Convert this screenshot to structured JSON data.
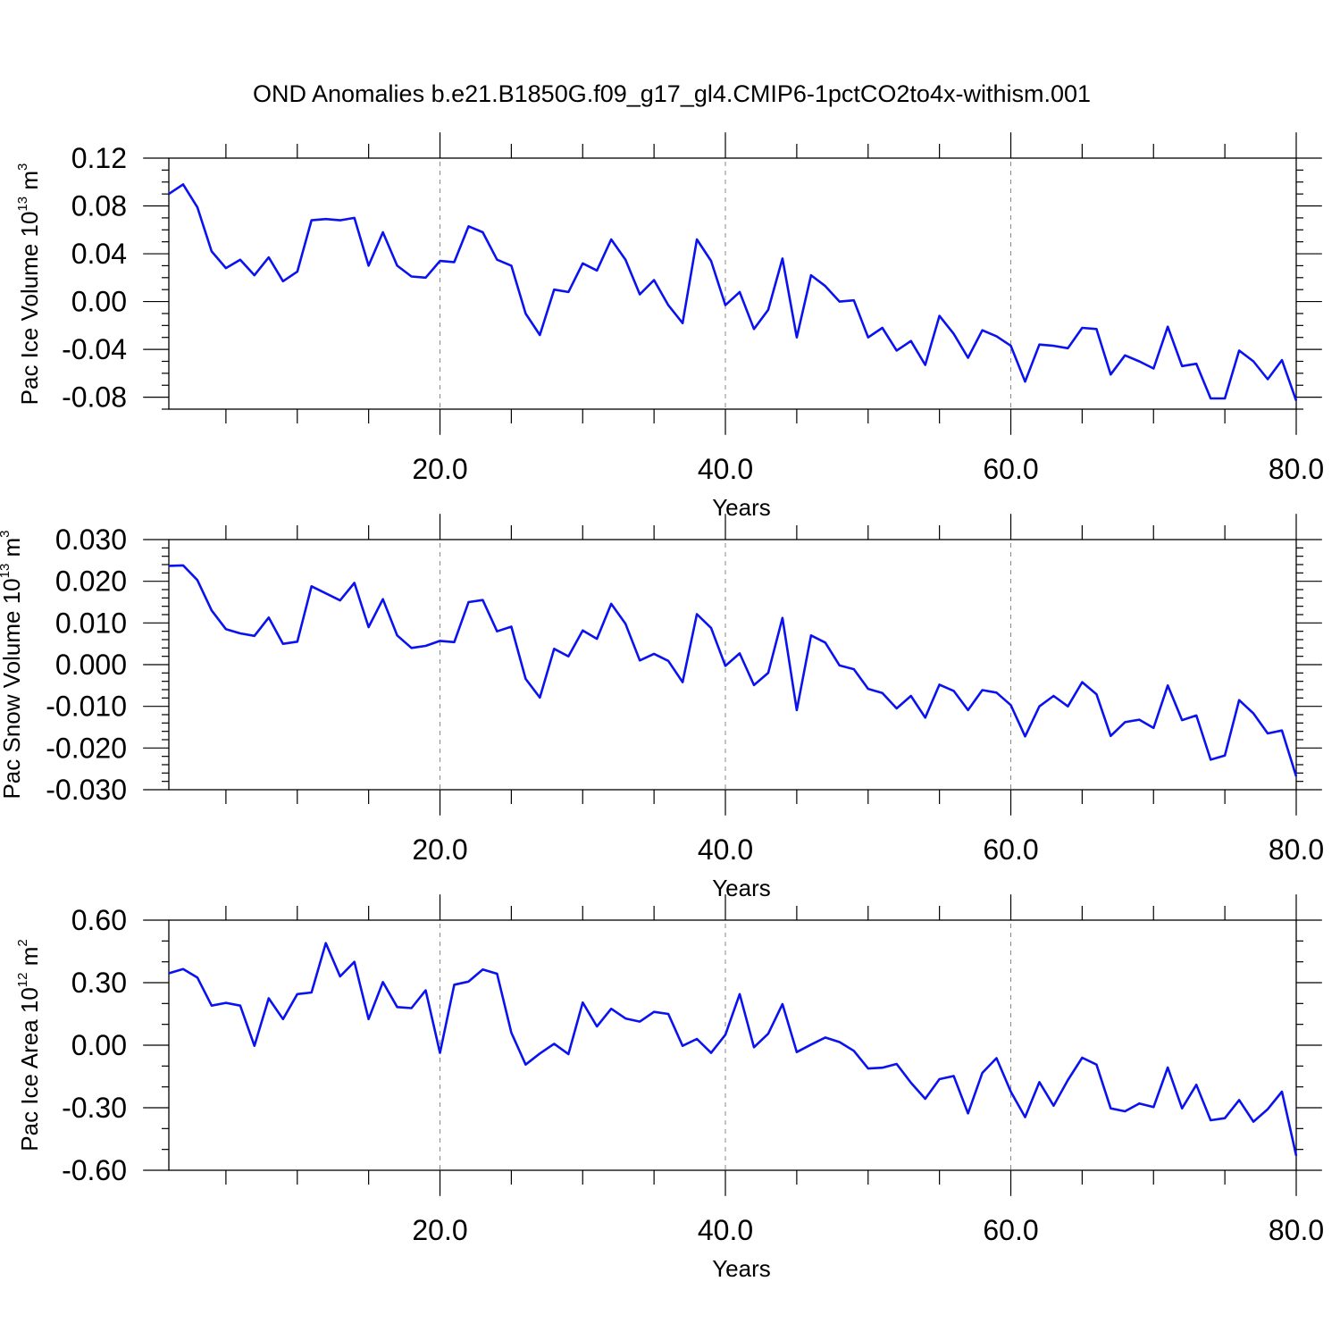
{
  "figure_title": "OND Anomalies b.e21.B1850G.f09_g17_gl4.CMIP6-1pctCO2to4x-withism.001",
  "colors": {
    "series": "#0a12f0",
    "grid": "#888888",
    "axes": "#000000"
  },
  "chart_data": [
    {
      "type": "line",
      "ylabel": {
        "main": "Pac Ice Volume 10",
        "exponent": "13",
        "unit": " m",
        "unit_exponent": "3"
      },
      "xlabel": "Years",
      "xlim": [
        1,
        80
      ],
      "ylim": [
        -0.09,
        0.12
      ],
      "yticks": [
        -0.08,
        -0.04,
        0.0,
        0.04,
        0.08,
        0.12
      ],
      "ytick_labels": [
        "-0.08",
        "-0.04",
        "0.00",
        "0.04",
        "0.08",
        "0.12"
      ],
      "yminor_step": 0.01,
      "xticks": [
        20,
        40,
        60,
        80
      ],
      "xtick_labels": [
        "20.0",
        "40.0",
        "60.0",
        "80.0"
      ],
      "xminor_step": 5,
      "grid_x": [
        20,
        40,
        60
      ],
      "x_start": 1,
      "values": [
        0.09,
        0.098,
        0.079,
        0.042,
        0.028,
        0.035,
        0.022,
        0.037,
        0.017,
        0.025,
        0.068,
        0.069,
        0.068,
        0.07,
        0.03,
        0.058,
        0.03,
        0.021,
        0.02,
        0.034,
        0.033,
        0.063,
        0.058,
        0.035,
        0.03,
        -0.01,
        -0.028,
        0.01,
        0.008,
        0.032,
        0.026,
        0.052,
        0.035,
        0.006,
        0.018,
        -0.003,
        -0.018,
        0.052,
        0.034,
        -0.003,
        0.008,
        -0.023,
        -0.007,
        0.036,
        -0.03,
        0.022,
        0.013,
        0.0,
        0.001,
        -0.03,
        -0.022,
        -0.041,
        -0.033,
        -0.053,
        -0.012,
        -0.027,
        -0.047,
        -0.024,
        -0.029,
        -0.037,
        -0.067,
        -0.036,
        -0.037,
        -0.039,
        -0.022,
        -0.023,
        -0.061,
        -0.045,
        -0.05,
        -0.056,
        -0.021,
        -0.054,
        -0.052,
        -0.081,
        -0.081,
        -0.041,
        -0.05,
        -0.065,
        -0.049,
        -0.083
      ]
    },
    {
      "type": "line",
      "ylabel": {
        "main": "Pac Snow Volume 10",
        "exponent": "13",
        "unit": " m",
        "unit_exponent": "3"
      },
      "xlabel": "Years",
      "xlim": [
        1,
        80
      ],
      "ylim": [
        -0.03,
        0.03
      ],
      "yticks": [
        -0.03,
        -0.02,
        -0.01,
        0.0,
        0.01,
        0.02,
        0.03
      ],
      "ytick_labels": [
        "-0.030",
        "-0.020",
        "-0.010",
        "0.000",
        "0.010",
        "0.020",
        "0.030"
      ],
      "yminor_step": 0.002,
      "xticks": [
        20,
        40,
        60,
        80
      ],
      "xtick_labels": [
        "20.0",
        "40.0",
        "60.0",
        "80.0"
      ],
      "xminor_step": 5,
      "grid_x": [
        20,
        40,
        60
      ],
      "x_start": 1,
      "values": [
        0.0237,
        0.0238,
        0.0203,
        0.013,
        0.0085,
        0.0075,
        0.0069,
        0.0113,
        0.005,
        0.0055,
        0.0188,
        0.0171,
        0.0154,
        0.0196,
        0.009,
        0.0157,
        0.007,
        0.004,
        0.0045,
        0.0057,
        0.0054,
        0.015,
        0.0155,
        0.008,
        0.0091,
        -0.0034,
        -0.0079,
        0.0038,
        0.002,
        0.0082,
        0.0062,
        0.0146,
        0.0098,
        0.001,
        0.0026,
        0.0009,
        -0.0042,
        0.0121,
        0.0088,
        -0.0003,
        0.0027,
        -0.0049,
        -0.002,
        0.0112,
        -0.0109,
        0.007,
        0.0053,
        -0.0002,
        -0.0011,
        -0.0058,
        -0.0068,
        -0.0105,
        -0.0075,
        -0.0127,
        -0.0048,
        -0.0063,
        -0.0109,
        -0.0061,
        -0.0067,
        -0.0097,
        -0.0172,
        -0.01,
        -0.0075,
        -0.01,
        -0.0042,
        -0.0071,
        -0.0171,
        -0.0138,
        -0.0132,
        -0.0152,
        -0.005,
        -0.0133,
        -0.0122,
        -0.0228,
        -0.0218,
        -0.0085,
        -0.0117,
        -0.0165,
        -0.0158,
        -0.0268
      ]
    },
    {
      "type": "line",
      "ylabel": {
        "main": "Pac Ice Area 10",
        "exponent": "12",
        "unit": " m",
        "unit_exponent": "2"
      },
      "xlabel": "Years",
      "xlim": [
        1,
        80
      ],
      "ylim": [
        -0.6,
        0.6
      ],
      "yticks": [
        -0.6,
        -0.3,
        0.0,
        0.3,
        0.6
      ],
      "ytick_labels": [
        "-0.60",
        "-0.30",
        "0.00",
        "0.30",
        "0.60"
      ],
      "yminor_step": 0.1,
      "xticks": [
        20,
        40,
        60,
        80
      ],
      "xtick_labels": [
        "20.0",
        "40.0",
        "60.0",
        "80.0"
      ],
      "xminor_step": 5,
      "grid_x": [
        20,
        40,
        60
      ],
      "x_start": 1,
      "values": [
        0.345,
        0.365,
        0.325,
        0.19,
        0.203,
        0.19,
        -0.003,
        0.225,
        0.125,
        0.245,
        0.253,
        0.49,
        0.33,
        0.4,
        0.125,
        0.303,
        0.183,
        0.178,
        0.263,
        -0.037,
        0.29,
        0.305,
        0.363,
        0.343,
        0.06,
        -0.093,
        -0.04,
        0.007,
        -0.043,
        0.205,
        0.09,
        0.175,
        0.128,
        0.113,
        0.16,
        0.15,
        -0.003,
        0.03,
        -0.037,
        0.05,
        0.245,
        -0.01,
        0.055,
        0.197,
        -0.033,
        0.003,
        0.037,
        0.015,
        -0.027,
        -0.112,
        -0.108,
        -0.09,
        -0.18,
        -0.257,
        -0.163,
        -0.148,
        -0.327,
        -0.133,
        -0.062,
        -0.223,
        -0.345,
        -0.177,
        -0.29,
        -0.167,
        -0.06,
        -0.093,
        -0.303,
        -0.317,
        -0.28,
        -0.297,
        -0.107,
        -0.303,
        -0.19,
        -0.36,
        -0.35,
        -0.263,
        -0.367,
        -0.307,
        -0.223,
        -0.53
      ]
    }
  ]
}
